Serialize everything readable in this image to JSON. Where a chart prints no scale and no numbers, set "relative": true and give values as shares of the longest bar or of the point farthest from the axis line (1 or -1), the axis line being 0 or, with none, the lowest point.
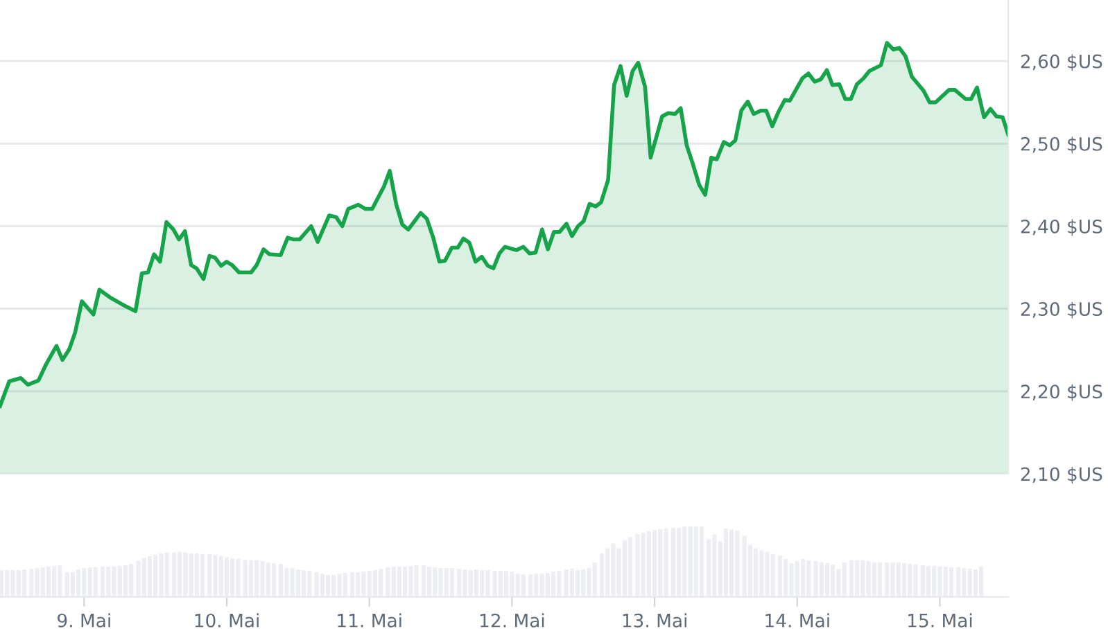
{
  "chart_data": [
    {
      "type": "area",
      "xlim": [
        8.41,
        15.48
      ],
      "ylim": [
        2.1,
        2.674
      ],
      "tick_labels": "y",
      "grid": "y",
      "legend": false,
      "yticks": [
        {
          "value": 2.1,
          "label": "2,10 $US"
        },
        {
          "value": 2.2,
          "label": "2,20 $US"
        },
        {
          "value": 2.3,
          "label": "2,30 $US"
        },
        {
          "value": 2.4,
          "label": "2,40 $US"
        },
        {
          "value": 2.5,
          "label": "2,50 $US"
        },
        {
          "value": 2.6,
          "label": "2,60 $US"
        }
      ],
      "series": [
        {
          "color": "#16a34a",
          "x": [
            8.41,
            8.475,
            8.556,
            8.605,
            8.679,
            8.734,
            8.806,
            8.848,
            8.896,
            8.938,
            8.984,
            9.065,
            9.107,
            9.188,
            9.269,
            9.36,
            9.405,
            9.448,
            9.49,
            9.532,
            9.577,
            9.626,
            9.665,
            9.707,
            9.75,
            9.788,
            9.837,
            9.879,
            9.918,
            9.96,
            9.999,
            10.037,
            10.086,
            10.171,
            10.21,
            10.258,
            10.3,
            10.378,
            10.427,
            10.469,
            10.511,
            10.592,
            10.638,
            10.718,
            10.767,
            10.81,
            10.852,
            10.923,
            10.971,
            11.02,
            11.102,
            11.143,
            11.189,
            11.231,
            11.273,
            11.36,
            11.403,
            11.448,
            11.491,
            11.53,
            11.578,
            11.62,
            11.659,
            11.701,
            11.744,
            11.788,
            11.831,
            11.87,
            11.912,
            11.951,
            12.032,
            12.08,
            12.123,
            12.165,
            12.211,
            12.252,
            12.294,
            12.333,
            12.382,
            12.421,
            12.463,
            12.502,
            12.544,
            12.586,
            12.625,
            12.674,
            12.716,
            12.761,
            12.804,
            12.846,
            12.885,
            12.933,
            12.972,
            13.014,
            13.053,
            13.096,
            13.144,
            13.183,
            13.225,
            13.267,
            13.313,
            13.355,
            13.397,
            13.436,
            13.485,
            13.527,
            13.566,
            13.608,
            13.653,
            13.695,
            13.744,
            13.783,
            13.825,
            13.867,
            13.913,
            13.948,
            14.036,
            14.078,
            14.123,
            14.166,
            14.208,
            14.247,
            14.295,
            14.337,
            14.376,
            14.419,
            14.464,
            14.506,
            14.587,
            14.629,
            14.675,
            14.716,
            14.759,
            14.804,
            14.886,
            14.928,
            14.97,
            15.064,
            15.106,
            15.181,
            15.219,
            15.261,
            15.31,
            15.355,
            15.397,
            15.44,
            15.479
          ],
          "values": [
            2.182,
            2.212,
            2.216,
            2.208,
            2.213,
            2.233,
            2.255,
            2.238,
            2.251,
            2.272,
            2.309,
            2.293,
            2.323,
            2.313,
            2.305,
            2.297,
            2.343,
            2.344,
            2.366,
            2.357,
            2.405,
            2.396,
            2.384,
            2.394,
            2.353,
            2.349,
            2.336,
            2.364,
            2.362,
            2.352,
            2.357,
            2.353,
            2.344,
            2.344,
            2.353,
            2.372,
            2.366,
            2.365,
            2.386,
            2.384,
            2.384,
            2.4,
            2.381,
            2.413,
            2.411,
            2.4,
            2.421,
            2.426,
            2.421,
            2.421,
            2.448,
            2.467,
            2.426,
            2.402,
            2.396,
            2.416,
            2.409,
            2.386,
            2.357,
            2.358,
            2.374,
            2.374,
            2.385,
            2.38,
            2.357,
            2.363,
            2.352,
            2.349,
            2.367,
            2.375,
            2.371,
            2.375,
            2.367,
            2.368,
            2.396,
            2.372,
            2.393,
            2.393,
            2.403,
            2.388,
            2.4,
            2.406,
            2.427,
            2.424,
            2.429,
            2.456,
            2.571,
            2.594,
            2.558,
            2.588,
            2.598,
            2.569,
            2.483,
            2.509,
            2.533,
            2.537,
            2.536,
            2.543,
            2.498,
            2.476,
            2.45,
            2.438,
            2.483,
            2.481,
            2.502,
            2.498,
            2.504,
            2.54,
            2.551,
            2.536,
            2.54,
            2.54,
            2.521,
            2.538,
            2.553,
            2.552,
            2.579,
            2.585,
            2.575,
            2.578,
            2.589,
            2.571,
            2.572,
            2.554,
            2.554,
            2.572,
            2.579,
            2.588,
            2.595,
            2.622,
            2.614,
            2.616,
            2.606,
            2.581,
            2.564,
            2.55,
            2.55,
            2.565,
            2.565,
            2.554,
            2.554,
            2.568,
            2.532,
            2.542,
            2.533,
            2.532,
            2.511
          ]
        }
      ]
    },
    {
      "type": "bar",
      "relative": true,
      "xlim": [
        8.41,
        15.48
      ],
      "tick_labels": "x",
      "grid": false,
      "legend": false,
      "xticks": [
        {
          "value": 9,
          "label": "9. Mai"
        },
        {
          "value": 10,
          "label": "10. Mai"
        },
        {
          "value": 11,
          "label": "11. Mai"
        },
        {
          "value": 12,
          "label": "12. Mai"
        },
        {
          "value": 13,
          "label": "13. Mai"
        },
        {
          "value": 14,
          "label": "14. Mai"
        },
        {
          "value": 15,
          "label": "15. Mai"
        }
      ],
      "series": [
        {
          "color": "#eceef1",
          "x": [
            8.42,
            8.46,
            8.5,
            8.54,
            8.58,
            8.63,
            8.67,
            8.71,
            8.75,
            8.79,
            8.83,
            8.88,
            8.92,
            8.96,
            9.0,
            9.04,
            9.08,
            9.13,
            9.17,
            9.21,
            9.25,
            9.29,
            9.33,
            9.38,
            9.42,
            9.46,
            9.5,
            9.54,
            9.58,
            9.63,
            9.67,
            9.71,
            9.75,
            9.79,
            9.83,
            9.88,
            9.92,
            9.96,
            10.0,
            10.04,
            10.08,
            10.13,
            10.17,
            10.21,
            10.25,
            10.29,
            10.33,
            10.38,
            10.42,
            10.46,
            10.5,
            10.54,
            10.58,
            10.63,
            10.67,
            10.71,
            10.75,
            10.79,
            10.83,
            10.88,
            10.92,
            10.96,
            11.0,
            11.04,
            11.08,
            11.13,
            11.17,
            11.21,
            11.25,
            11.29,
            11.33,
            11.38,
            11.42,
            11.46,
            11.5,
            11.54,
            11.58,
            11.63,
            11.67,
            11.71,
            11.75,
            11.79,
            11.83,
            11.88,
            11.92,
            11.96,
            12.0,
            12.04,
            12.08,
            12.13,
            12.17,
            12.21,
            12.25,
            12.29,
            12.33,
            12.38,
            12.42,
            12.46,
            12.5,
            12.54,
            12.58,
            12.63,
            12.67,
            12.71,
            12.75,
            12.79,
            12.83,
            12.88,
            12.92,
            12.96,
            13.0,
            13.04,
            13.08,
            13.13,
            13.17,
            13.21,
            13.25,
            13.29,
            13.33,
            13.38,
            13.42,
            13.46,
            13.5,
            13.54,
            13.58,
            13.63,
            13.67,
            13.71,
            13.75,
            13.79,
            13.83,
            13.88,
            13.92,
            13.96,
            14.0,
            14.04,
            14.08,
            14.13,
            14.17,
            14.21,
            14.25,
            14.29,
            14.33,
            14.38,
            14.42,
            14.46,
            14.5,
            14.54,
            14.58,
            14.63,
            14.67,
            14.71,
            14.75,
            14.79,
            14.83,
            14.88,
            14.92,
            14.96,
            15.0,
            15.04,
            15.08,
            15.13,
            15.17,
            15.21,
            15.25,
            15.29
          ],
          "values": [
            0.38,
            0.38,
            0.38,
            0.38,
            0.39,
            0.4,
            0.41,
            0.42,
            0.43,
            0.44,
            0.45,
            0.35,
            0.35,
            0.39,
            0.41,
            0.42,
            0.42,
            0.43,
            0.43,
            0.43,
            0.44,
            0.45,
            0.47,
            0.52,
            0.56,
            0.58,
            0.6,
            0.62,
            0.63,
            0.63,
            0.64,
            0.63,
            0.62,
            0.62,
            0.61,
            0.61,
            0.6,
            0.58,
            0.56,
            0.55,
            0.54,
            0.53,
            0.52,
            0.52,
            0.51,
            0.49,
            0.48,
            0.47,
            0.41,
            0.41,
            0.39,
            0.38,
            0.37,
            0.35,
            0.33,
            0.31,
            0.31,
            0.33,
            0.34,
            0.35,
            0.35,
            0.36,
            0.37,
            0.38,
            0.4,
            0.42,
            0.43,
            0.43,
            0.43,
            0.44,
            0.45,
            0.45,
            0.43,
            0.42,
            0.41,
            0.41,
            0.41,
            0.4,
            0.39,
            0.38,
            0.39,
            0.38,
            0.38,
            0.37,
            0.37,
            0.37,
            0.36,
            0.33,
            0.32,
            0.32,
            0.33,
            0.33,
            0.34,
            0.36,
            0.37,
            0.39,
            0.4,
            0.38,
            0.39,
            0.41,
            0.49,
            0.62,
            0.69,
            0.76,
            0.69,
            0.8,
            0.85,
            0.89,
            0.91,
            0.93,
            0.95,
            0.96,
            0.97,
            0.98,
            0.98,
            1,
            1,
            1,
            1,
            0.82,
            0.89,
            0.79,
            0.97,
            0.96,
            0.94,
            0.87,
            0.74,
            0.69,
            0.66,
            0.64,
            0.61,
            0.59,
            0.54,
            0.48,
            0.51,
            0.54,
            0.52,
            0.51,
            0.49,
            0.48,
            0.46,
            0.4,
            0.49,
            0.52,
            0.52,
            0.52,
            0.51,
            0.49,
            0.49,
            0.49,
            0.49,
            0.49,
            0.48,
            0.47,
            0.46,
            0.45,
            0.44,
            0.44,
            0.43,
            0.43,
            0.42,
            0.42,
            0.41,
            0.4,
            0.39,
            0.43
          ]
        }
      ]
    }
  ]
}
